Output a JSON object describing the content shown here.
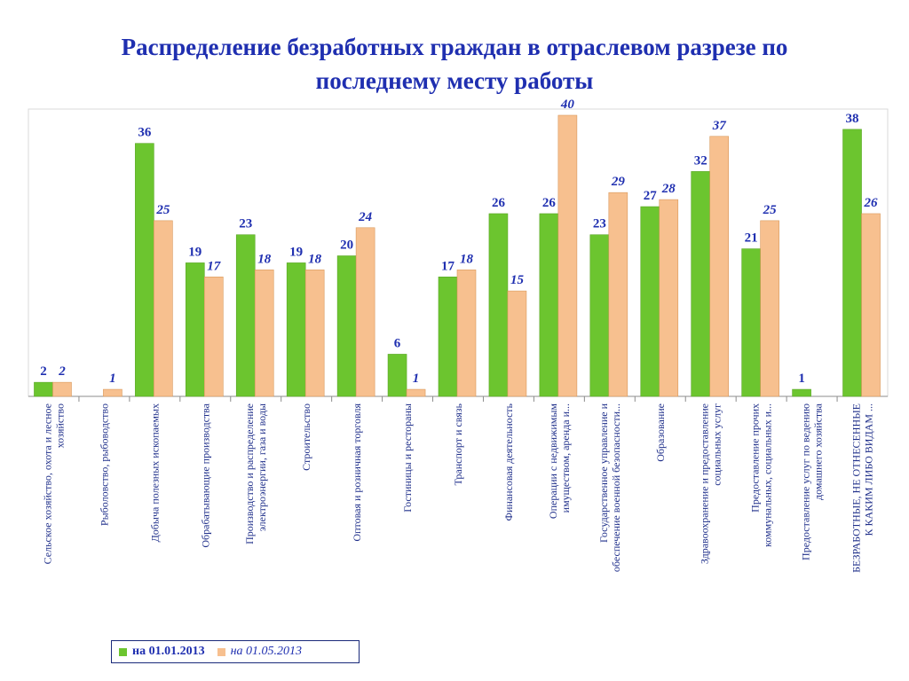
{
  "title": {
    "line1": "Распределение безработных граждан в отраслевом разрезе по",
    "line2": "последнему месту работы"
  },
  "colors": {
    "series_a": "#6cc52f",
    "series_b": "#f7c08f",
    "labels": "#1f2fb0",
    "axis_labels": "#1f2f8a"
  },
  "legend": {
    "series_a": "на 01.01.2013",
    "series_b": "на 01.05.2013"
  },
  "chart_data": {
    "type": "bar",
    "categories": [
      [
        "Сельское хозяйство, охота и лесное",
        "хозяйство"
      ],
      [
        "Рыболовство, рыбоводство"
      ],
      [
        "Добыча полезных ископаемых"
      ],
      [
        "Обрабатывающие производства"
      ],
      [
        "Производство и распределение",
        "электроэнергии, газа и воды"
      ],
      [
        "Строительство"
      ],
      [
        "Оптовая и розничная торговля"
      ],
      [
        "Гостиницы и рестораны"
      ],
      [
        "Транспорт и связь"
      ],
      [
        "Финансовая деятельность"
      ],
      [
        "Операции с недвижимым",
        "имуществом, аренда и..."
      ],
      [
        "Государственное управление и",
        "обеспечение военной безопасности..."
      ],
      [
        "Образование"
      ],
      [
        "Здравоохранение и предоставление",
        "социальных услуг"
      ],
      [
        "Предоставление прочих",
        "коммунальных, социальных и..."
      ],
      [
        "Предоставление услуг по ведению",
        "домашнего хозяйства"
      ],
      [
        "БЕЗРАБОТНЫЕ, НЕ ОТНЕСЕННЫЕ",
        "К КАКИМ ЛИБО ВИДАМ ..."
      ]
    ],
    "series": [
      {
        "name": "на 01.01.2013",
        "values": [
          2,
          0,
          36,
          19,
          23,
          19,
          20,
          6,
          17,
          26,
          26,
          23,
          27,
          32,
          21,
          1,
          38
        ]
      },
      {
        "name": "на 01.05.2013",
        "values": [
          2,
          1,
          25,
          17,
          18,
          18,
          24,
          1,
          18,
          15,
          40,
          29,
          28,
          37,
          25,
          0,
          26
        ]
      }
    ],
    "ylim": [
      0,
      40
    ],
    "grid": false,
    "legend_position": "bottom-left"
  }
}
